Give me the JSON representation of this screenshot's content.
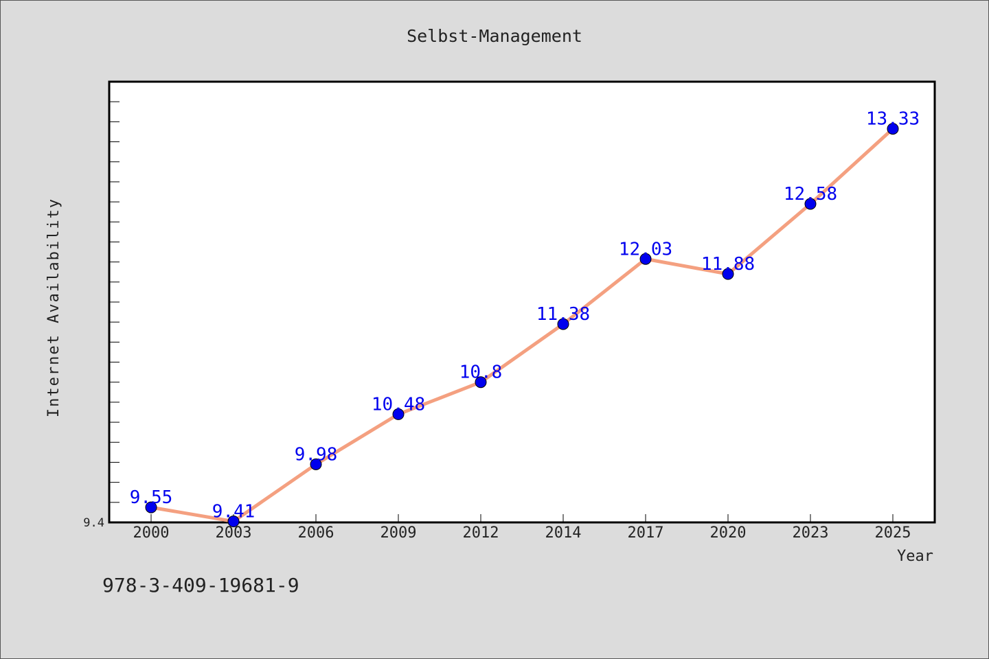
{
  "colors": {
    "background": "#dcdcdc",
    "plot_background": "#ffffff",
    "line": "#f4a080",
    "marker": "#0000ee",
    "data_label": "#0000ee",
    "text": "#222222"
  },
  "footer": {
    "isbn": "978-3-409-19681-9"
  },
  "chart_data": {
    "type": "line",
    "title": "Selbst-Management",
    "xlabel": "Year",
    "ylabel": "Internet Availability",
    "categories": [
      "2000",
      "2003",
      "2006",
      "2009",
      "2012",
      "2014",
      "2017",
      "2020",
      "2023",
      "2025"
    ],
    "series": [
      {
        "values": [
          9.55,
          9.41,
          9.98,
          10.48,
          10.8,
          11.38,
          12.03,
          11.88,
          12.58,
          13.33
        ],
        "labels": [
          "9.55",
          "9.41",
          "9.98",
          "10.48",
          "10.8",
          "11.38",
          "12.03",
          "11.88",
          "12.58",
          "13.33"
        ]
      }
    ],
    "ylim": [
      9.4,
      13.8
    ],
    "y_tick_labels": [
      "9.4"
    ],
    "grid": false,
    "legend": "none"
  }
}
